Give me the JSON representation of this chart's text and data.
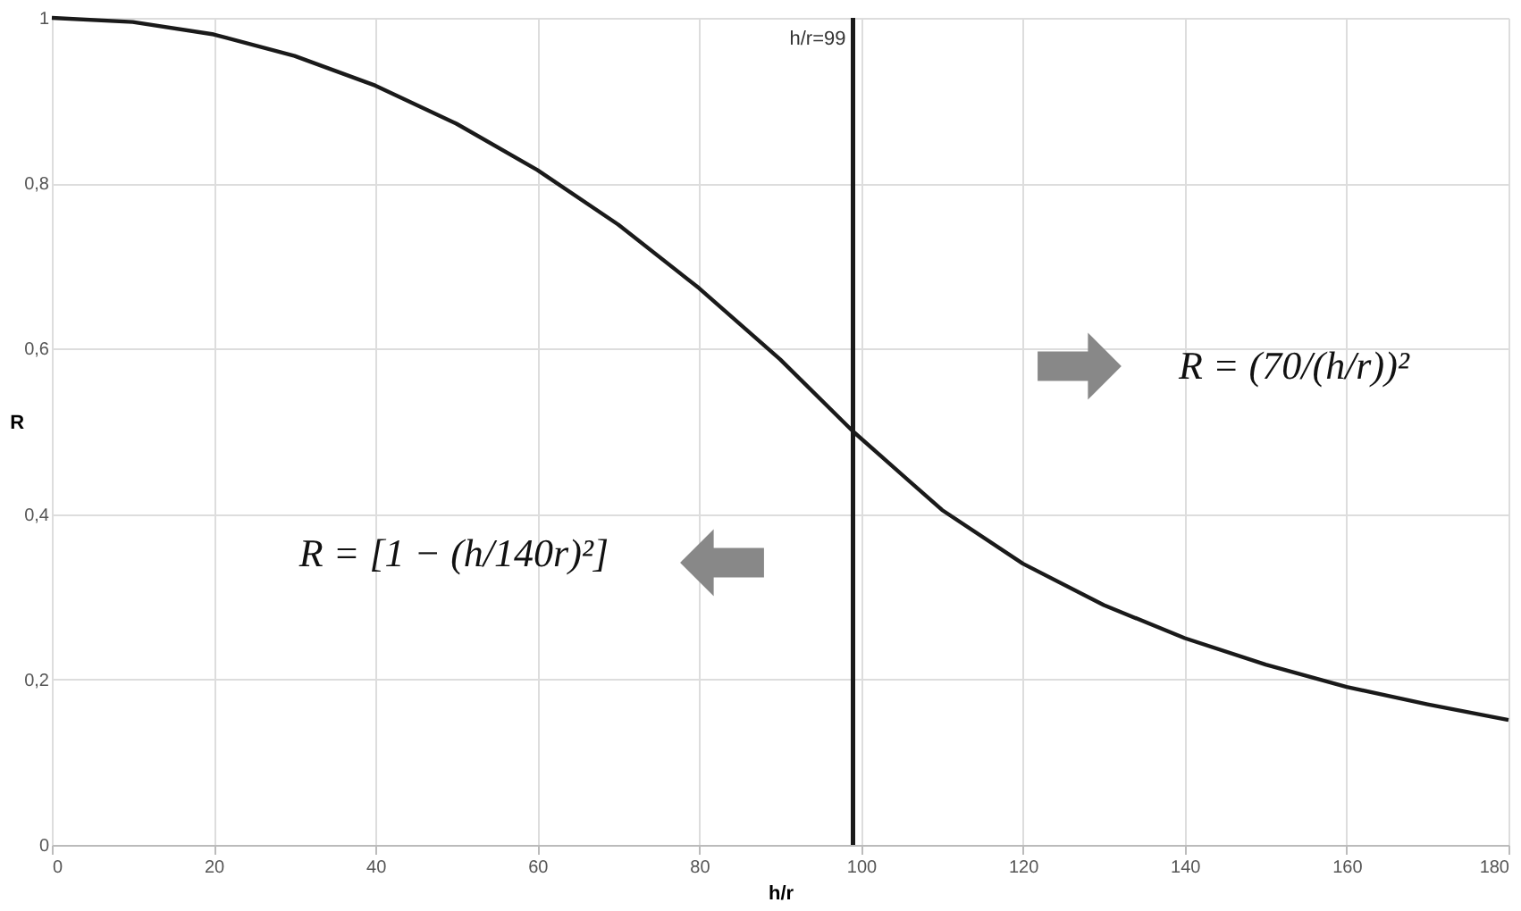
{
  "chart_data": {
    "type": "line",
    "xlabel": "h/r",
    "ylabel": "R",
    "x": [
      0,
      10,
      20,
      30,
      40,
      50,
      60,
      70,
      80,
      90,
      99,
      110,
      120,
      130,
      140,
      150,
      160,
      170,
      180
    ],
    "series": [
      {
        "color": "#1a1a1a",
        "values": [
          1,
          0.995,
          0.98,
          0.954,
          0.918,
          0.872,
          0.816,
          0.75,
          0.673,
          0.587,
          0.5,
          0.405,
          0.34,
          0.29,
          0.25,
          0.218,
          0.191,
          0.17,
          0.151
        ]
      }
    ],
    "xlim": [
      0,
      180
    ],
    "xticks": [
      0,
      20,
      40,
      60,
      80,
      100,
      120,
      140,
      160,
      180
    ],
    "ylim": [
      0,
      1
    ],
    "yticks": [
      0,
      {
        "value": 0.2,
        "label": "0,2"
      },
      {
        "value": 0.4,
        "label": "0,4"
      },
      {
        "value": 0.6,
        "label": "0,6"
      },
      {
        "value": 0.8,
        "label": "0,8"
      },
      1
    ],
    "grid": true,
    "marker": "none",
    "line_style": "solid",
    "legend": false,
    "ref_lines": [
      {
        "axis": "x",
        "value": 99,
        "label": "h/r=99",
        "color": "#1a1a1a"
      }
    ],
    "annotations": [
      "R = (70/(h/r))²",
      "R = [1 − (h/140r)²]"
    ]
  }
}
